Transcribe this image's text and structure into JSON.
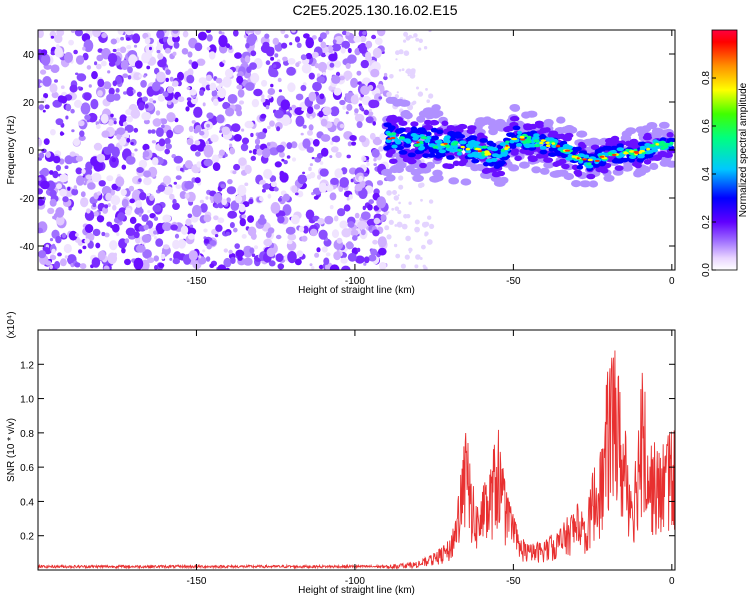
{
  "title": "C2E5.2025.130.16.02.E15",
  "chart_data": [
    {
      "type": "heatmap",
      "xlabel": "Height of straight line (km)",
      "ylabel": "Frequency (Hz)",
      "xlim": [
        -200,
        1
      ],
      "ylim": [
        -50,
        50
      ],
      "xticks": [
        -150,
        -100,
        -50,
        0
      ],
      "yticks": [
        -40,
        -20,
        0,
        20,
        40
      ],
      "colorbar": {
        "label": "Normalized spectral amplitude",
        "range": [
          0,
          1
        ],
        "ticks": [
          "0.0",
          "0.2",
          "0.4",
          "0.6",
          "0.8"
        ],
        "colors": [
          "#ffffff",
          "#d6b8ff",
          "#8a2be2",
          "#0000ff",
          "#00ffff",
          "#00ff00",
          "#ffff00",
          "#ff8000",
          "#ff0000"
        ]
      },
      "features": [
        {
          "region": "noise",
          "x_range": [
            -200,
            -90
          ],
          "freq_range": [
            -50,
            50
          ]
        },
        {
          "region": "signal",
          "points": [
            [
              -90,
              5
            ],
            [
              -85,
              4
            ],
            [
              -80,
              3
            ],
            [
              -75,
              3
            ],
            [
              -70,
              2
            ],
            [
              -65,
              1
            ],
            [
              -60,
              0
            ],
            [
              -55,
              -3
            ],
            [
              -50,
              5
            ],
            [
              -45,
              4
            ],
            [
              -40,
              3
            ],
            [
              -35,
              1
            ],
            [
              -30,
              -3
            ],
            [
              -25,
              -5
            ],
            [
              -20,
              -2
            ],
            [
              -15,
              -1
            ],
            [
              -10,
              -1
            ],
            [
              -5,
              2
            ],
            [
              0,
              2
            ]
          ]
        }
      ]
    },
    {
      "type": "line",
      "xlabel": "Height of straight line (km)",
      "ylabel": "SNR (10 * v/v)",
      "y_multiplier": "(x10⁴)",
      "xlim": [
        -200,
        1
      ],
      "ylim": [
        0,
        1.4
      ],
      "xticks": [
        -150,
        -100,
        -50,
        0
      ],
      "yticks": [
        0.2,
        0.4,
        0.6,
        0.8,
        1.0,
        1.2
      ],
      "color": "#e83030",
      "envelope": [
        [
          -200,
          0.02
        ],
        [
          -170,
          0.02
        ],
        [
          -140,
          0.02
        ],
        [
          -110,
          0.02
        ],
        [
          -90,
          0.03
        ],
        [
          -80,
          0.05
        ],
        [
          -75,
          0.1
        ],
        [
          -70,
          0.18
        ],
        [
          -67,
          0.5
        ],
        [
          -65,
          0.86
        ],
        [
          -62,
          0.4
        ],
        [
          -58,
          0.55
        ],
        [
          -55,
          0.86
        ],
        [
          -52,
          0.45
        ],
        [
          -48,
          0.2
        ],
        [
          -45,
          0.15
        ],
        [
          -40,
          0.18
        ],
        [
          -35,
          0.25
        ],
        [
          -30,
          0.4
        ],
        [
          -27,
          0.3
        ],
        [
          -25,
          0.6
        ],
        [
          -22,
          0.75
        ],
        [
          -20,
          1.25
        ],
        [
          -18,
          1.4
        ],
        [
          -15,
          0.85
        ],
        [
          -12,
          0.6
        ],
        [
          -9,
          1.28
        ],
        [
          -7,
          0.8
        ],
        [
          -4,
          0.7
        ],
        [
          -2,
          0.82
        ],
        [
          0,
          0.85
        ],
        [
          1,
          0.8
        ]
      ]
    }
  ]
}
